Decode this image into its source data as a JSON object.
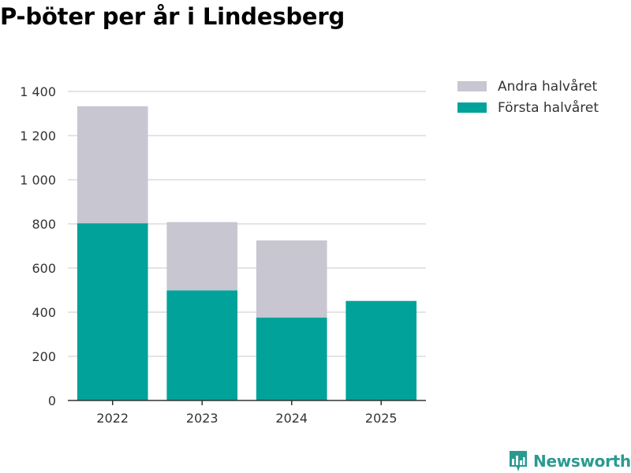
{
  "chart_data": {
    "type": "bar",
    "stacked": true,
    "title": "P-böter per år i Lindesberg",
    "categories": [
      "2022",
      "2023",
      "2024",
      "2025"
    ],
    "series": [
      {
        "name": "Första halvåret",
        "values": [
          803,
          499,
          376,
          451
        ],
        "color": "#00a29a"
      },
      {
        "name": "Andra halvåret",
        "values": [
          530,
          309,
          349,
          0
        ],
        "color": "#c7c6d1"
      }
    ],
    "ylim": [
      0,
      1400
    ],
    "yticks": [
      0,
      200,
      400,
      600,
      800,
      1000,
      1200,
      1400
    ],
    "ytick_labels": [
      "0",
      "200",
      "400",
      "600",
      "800",
      "1 000",
      "1 200",
      "1 400"
    ],
    "xlabel": "",
    "ylabel": "",
    "grid": true,
    "legend_position": "top-right"
  },
  "legend": {
    "items": [
      {
        "label": "Andra halvåret",
        "color": "#c7c6d1"
      },
      {
        "label": "Första halvåret",
        "color": "#00a29a"
      }
    ]
  },
  "brand": {
    "name": "Newsworthy",
    "color": "#2a9a90"
  }
}
